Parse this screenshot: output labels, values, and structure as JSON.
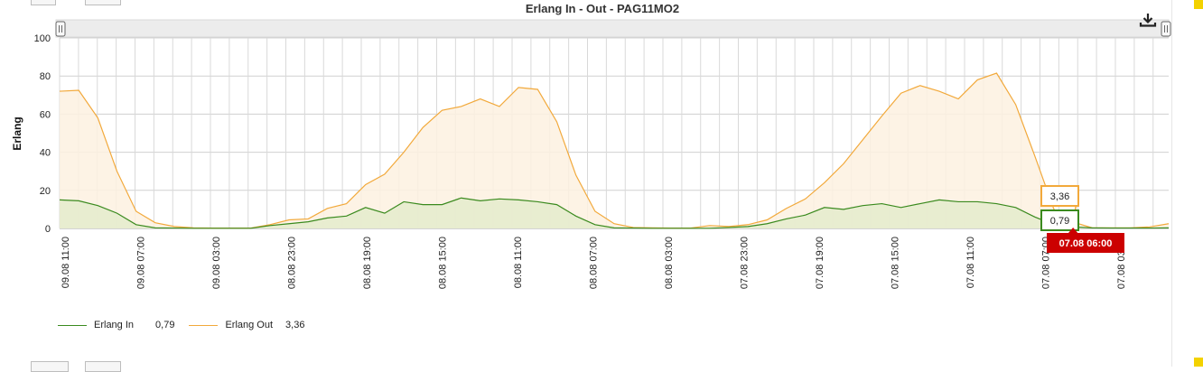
{
  "chart_data": {
    "type": "area",
    "title": "Erlang In - Out - PAG11MO2",
    "ylabel": "Erlang",
    "xlabel": "",
    "ylim": [
      0,
      100
    ],
    "y_ticks": [
      0,
      20,
      40,
      60,
      80,
      100
    ],
    "grid": true,
    "legend_position": "bottom-left",
    "x_tick_labels": [
      "09.08 11:00",
      "09.08 07:00",
      "09.08 03:00",
      "08.08 23:00",
      "08.08 19:00",
      "08.08 15:00",
      "08.08 11:00",
      "08.08 07:00",
      "08.08 03:00",
      "07.08 23:00",
      "07.08 19:00",
      "07.08 15:00",
      "07.08 11:00",
      "07.08 07:00",
      "07.08 03:00"
    ],
    "series": [
      {
        "name": "Erlang In",
        "color": "#3a8a1e",
        "fill": "#e4ebcc",
        "current": "0,79",
        "values": [
          15,
          14.5,
          12,
          8,
          2,
          0.3,
          0.2,
          0.1,
          0.1,
          0.1,
          0.1,
          1.5,
          2.5,
          3.5,
          5.5,
          6.5,
          11,
          8,
          14,
          12.5,
          12.5,
          16,
          14.5,
          15.5,
          15,
          14,
          12.5,
          6.5,
          2,
          0.3,
          0.2,
          0.1,
          0.1,
          0.1,
          0.1,
          0.5,
          1,
          2.5,
          5,
          7,
          11,
          10,
          12,
          13,
          11,
          13,
          15,
          14,
          14,
          13,
          11,
          6,
          2,
          0.79,
          0.3,
          0.2,
          0.2,
          0.2,
          0.3
        ]
      },
      {
        "name": "Erlang Out",
        "color": "#f2a93b",
        "fill": "#fdf1e0",
        "current": "3,36",
        "values": [
          72,
          72.5,
          58,
          30,
          9,
          3,
          1,
          0.3,
          0.2,
          0.2,
          0.2,
          2,
          4.5,
          5,
          10.5,
          13,
          23,
          28.5,
          40,
          53,
          62,
          64,
          68,
          64,
          74,
          73,
          56,
          28,
          9,
          2.5,
          0.5,
          0.3,
          0.2,
          0.2,
          1.5,
          1,
          2,
          4.5,
          10.5,
          15.5,
          24,
          34,
          46.5,
          59,
          71,
          75,
          72,
          68,
          78,
          81.5,
          65,
          38,
          10,
          3.36,
          0.3,
          0.3,
          0.3,
          0.8,
          2.5
        ]
      }
    ],
    "tooltip": {
      "x_label": "07.08 06:00",
      "index": 53
    }
  }
}
